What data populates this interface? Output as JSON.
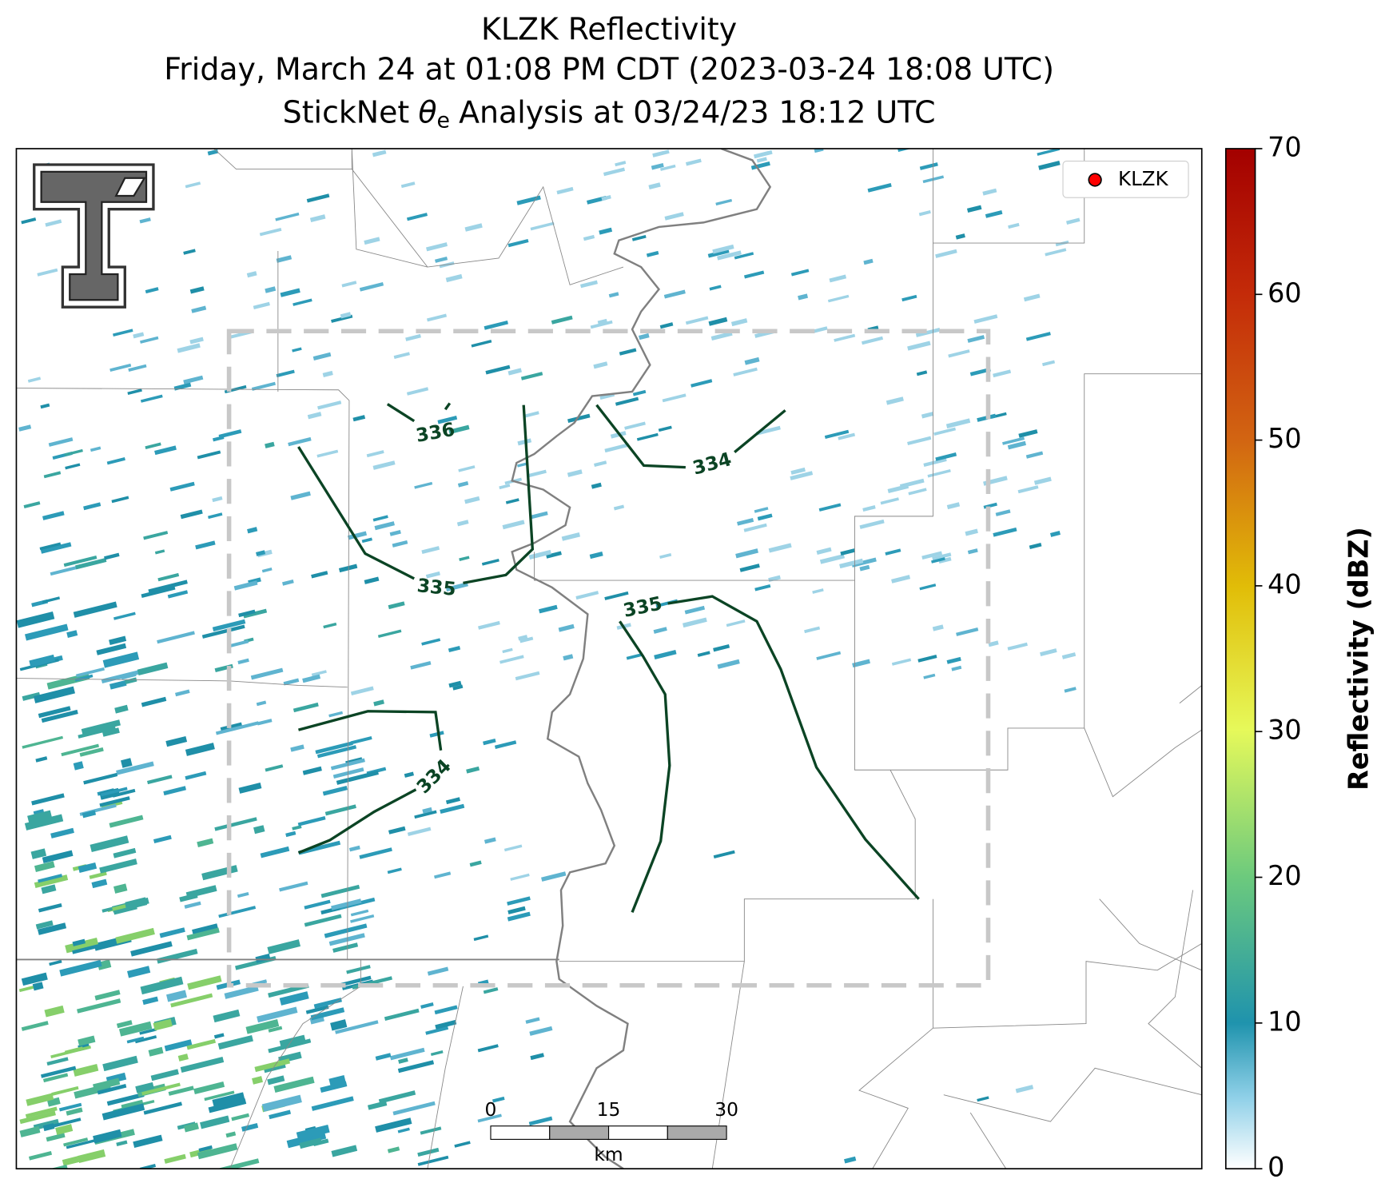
{
  "title": {
    "line1": "KLZK Reflectivity",
    "line2": "Friday, March 24 at 01:08 PM CDT (2023-03-24 18:08 UTC)",
    "line3": {
      "prefix": "StickNet",
      "symbol": "θ",
      "subscript": "e",
      "suffix": "Analysis at 03/24/23 18:12 UTC"
    }
  },
  "legend": {
    "entries": [
      {
        "label": "KLZK",
        "color": "#ff0000"
      }
    ]
  },
  "colorbar": {
    "label": "Reflectivity (dBZ)",
    "lim": [
      0,
      70
    ],
    "ticks": [
      0,
      10,
      20,
      30,
      40,
      50,
      60,
      70
    ]
  },
  "scalebar": {
    "ticks": [
      0,
      15,
      30
    ],
    "unit": "km"
  },
  "contours": {
    "labels": [
      336,
      335,
      334,
      335,
      334
    ]
  }
}
